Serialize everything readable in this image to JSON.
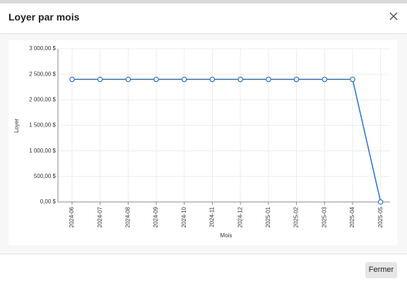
{
  "modal": {
    "title": "Loyer par mois",
    "close_button": "Fermer"
  },
  "chart_data": {
    "type": "line",
    "x_label": "Mois",
    "y_label": "Loyer",
    "categories": [
      "2024-06",
      "2024-07",
      "2024-08",
      "2024-09",
      "2024-10",
      "2024-11",
      "2024-12",
      "2025-01",
      "2025-02",
      "2025-03",
      "2025-04",
      "2025-05"
    ],
    "series": [
      {
        "name": "Loyer",
        "color": "#2a6fd1",
        "values": [
          2400,
          2400,
          2400,
          2400,
          2400,
          2400,
          2400,
          2400,
          2400,
          2400,
          2400,
          0
        ]
      }
    ],
    "ylim": [
      0,
      3000
    ],
    "yticks": [
      {
        "value": 0,
        "label": "0,00 $"
      },
      {
        "value": 500,
        "label": "500,00 $"
      },
      {
        "value": 1000,
        "label": "1 000,00 $"
      },
      {
        "value": 1500,
        "label": "1 500,00 $"
      },
      {
        "value": 2000,
        "label": "2 000,00 $"
      },
      {
        "value": 2500,
        "label": "2 500,00 $"
      },
      {
        "value": 3000,
        "label": "3 000,00 $"
      }
    ],
    "grid": true
  }
}
